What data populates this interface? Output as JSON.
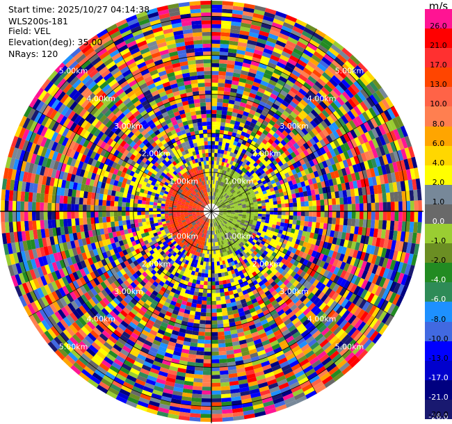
{
  "info": {
    "start_time": "Start time: 2025/10/27 04:14:38",
    "site": "WLS200s-181",
    "field": "Field: VEL",
    "elevation": "Elevation(deg): 35.00",
    "nrays": "NRays: 120"
  },
  "colorbar": {
    "unit": "m/s",
    "bins": [
      {
        "label": "26.0",
        "color": "#ff1493"
      },
      {
        "label": "21.0",
        "color": "#ff0000"
      },
      {
        "label": "17.0",
        "color": "#ff3030"
      },
      {
        "label": "13.0",
        "color": "#ff4500"
      },
      {
        "label": "10.0",
        "color": "#ff6347"
      },
      {
        "label": "8.0",
        "color": "#ff7f50"
      },
      {
        "label": "6.0",
        "color": "#ffa500"
      },
      {
        "label": "4.0",
        "color": "#ffd700"
      },
      {
        "label": "2.0",
        "color": "#ffff00"
      },
      {
        "label": "1.0",
        "color": "#778899"
      },
      {
        "label": "0.0",
        "color": "#696969"
      },
      {
        "label": "-1.0",
        "color": "#9acd32"
      },
      {
        "label": "-2.0",
        "color": "#6b8e23"
      },
      {
        "label": "-4.0",
        "color": "#228b22"
      },
      {
        "label": "-6.0",
        "color": "#2e8b57"
      },
      {
        "label": "-8.0",
        "color": "#1e90ff"
      },
      {
        "label": "-10.0",
        "color": "#4169e1"
      },
      {
        "label": "-13.0",
        "color": "#0000ff"
      },
      {
        "label": "-17.0",
        "color": "#0000cd"
      },
      {
        "label": "-21.0",
        "color": "#000080"
      },
      {
        "label": "-26.0",
        "color": "#191970"
      }
    ],
    "bottom_label": "-30.0"
  },
  "chart_data": {
    "type": "heatmap",
    "projection": "polar PPI",
    "field": "VEL",
    "units": "m/s",
    "elevation_deg": 35.0,
    "n_rays": 120,
    "range_rings_km": [
      1,
      2,
      3,
      4,
      5
    ],
    "ring_labels": [
      "1.00km",
      "2.00km",
      "3.00km",
      "4.00km",
      "5.00km"
    ],
    "max_range_km": 5.4,
    "color_scale_min": -30.0,
    "color_scale_max": 30.0,
    "grid": true
  }
}
